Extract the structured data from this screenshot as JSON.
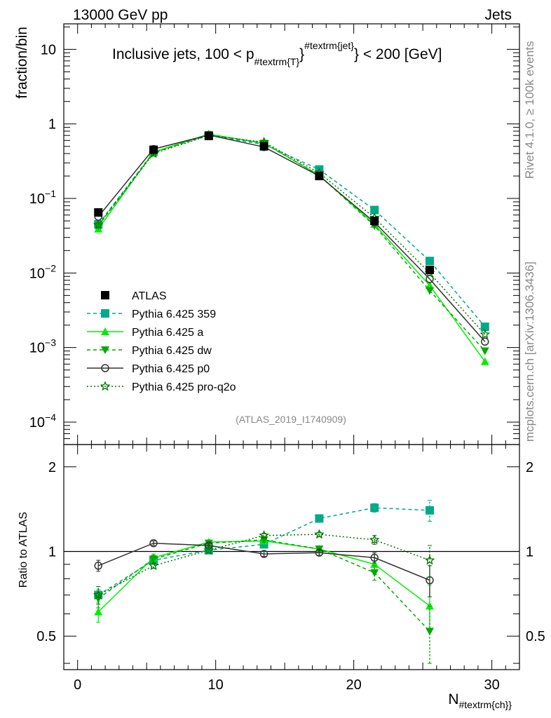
{
  "header": {
    "left": "13000 GeV pp",
    "right": "Jets",
    "side_top": "Rivet 4.1.0, ≥ 100k events",
    "side_bottom": "mcplots.cern.ch [arXiv:1306.3436]",
    "analysis_id": "(ATLAS_2019_I1740909)"
  },
  "chart_data": {
    "type": "line",
    "title": {
      "main": "Inclusive jets, 100 < p",
      "sub": "#textrm{T}",
      "sup": "#textrm{jet}",
      "tail": "} < 200 [GeV]"
    },
    "xlabel": {
      "main": "N",
      "sub": "#textrm{ch}}"
    },
    "ylabel_top": "fraction/bin",
    "ylabel_bottom": "Ratio to ATLAS",
    "xlim": [
      -1,
      32
    ],
    "ylim_top": [
      5e-05,
      22
    ],
    "ylim_bottom": [
      0.38,
      2.4
    ],
    "x_ticks": [
      0,
      10,
      20,
      30
    ],
    "x_tick_labels": [
      "0",
      "10",
      "20",
      "30"
    ],
    "y_ticks_top": [
      10,
      1,
      0.1,
      0.01,
      0.001,
      0.0001
    ],
    "y_tick_labels_top": [
      {
        "base": "10",
        "exp": ""
      },
      {
        "base": "1",
        "exp": ""
      },
      {
        "base": "10",
        "exp": "−1"
      },
      {
        "base": "10",
        "exp": "−2"
      },
      {
        "base": "10",
        "exp": "−3"
      },
      {
        "base": "10",
        "exp": "−4"
      }
    ],
    "y_ticks_bottom": [
      2,
      1,
      0.5
    ],
    "y_tick_labels_bottom": [
      "2",
      "1",
      "0.5"
    ],
    "legend_position": "middle-left",
    "x": [
      1.5,
      5.5,
      9.5,
      13.5,
      17.5,
      21.5,
      25.5,
      29.5
    ],
    "series": [
      {
        "key": "atlas",
        "name": "ATLAS",
        "color": "#000000",
        "dash": "none",
        "marker": "square-filled",
        "line": false,
        "values": [
          0.065,
          0.45,
          0.69,
          0.5,
          0.2,
          0.05,
          0.011,
          null
        ],
        "ratio": null,
        "ratio_err": null
      },
      {
        "key": "p359",
        "name": "Pythia 6.425 359",
        "color": "#00aa88",
        "dash": "5,4",
        "marker": "square-filled",
        "line": true,
        "values": [
          0.045,
          0.42,
          0.7,
          0.53,
          0.245,
          0.07,
          0.0145,
          0.0019
        ],
        "ratio": [
          0.7,
          0.93,
          1.01,
          1.06,
          1.31,
          1.43,
          1.4,
          null
        ],
        "ratio_err": [
          0.05,
          0.03,
          0.02,
          0.02,
          0.03,
          0.05,
          0.12,
          null
        ]
      },
      {
        "key": "pa",
        "name": "Pythia 6.425 a",
        "color": "#00ee00",
        "dash": "none",
        "marker": "triangle-up",
        "line": true,
        "values": [
          0.039,
          0.42,
          0.73,
          0.55,
          0.205,
          0.045,
          0.0068,
          0.00065
        ],
        "ratio": [
          0.61,
          0.95,
          1.08,
          1.09,
          1.02,
          0.9,
          0.64,
          null
        ],
        "ratio_err": [
          0.05,
          0.03,
          0.02,
          0.02,
          0.02,
          0.05,
          0.12,
          null
        ]
      },
      {
        "key": "pdw",
        "name": "Pythia 6.425 dw",
        "color": "#00aa00",
        "dash": "5,4",
        "marker": "triangle-down",
        "line": true,
        "values": [
          0.043,
          0.41,
          0.72,
          0.55,
          0.205,
          0.043,
          0.0058,
          0.0009
        ],
        "ratio": [
          0.68,
          0.94,
          1.07,
          1.1,
          1.02,
          0.84,
          0.52,
          null
        ],
        "ratio_err": [
          0.05,
          0.03,
          0.02,
          0.02,
          0.02,
          0.05,
          0.12,
          null
        ]
      },
      {
        "key": "pp0",
        "name": "Pythia 6.425 p0",
        "color": "#333333",
        "dash": "none",
        "marker": "circle-open",
        "line": true,
        "values": [
          0.057,
          0.46,
          0.71,
          0.49,
          0.2,
          0.048,
          0.0083,
          0.0012
        ],
        "ratio": [
          0.89,
          1.07,
          1.05,
          0.98,
          0.99,
          0.95,
          0.79,
          null
        ],
        "ratio_err": [
          0.04,
          0.02,
          0.02,
          0.02,
          0.02,
          0.04,
          0.1,
          null
        ]
      },
      {
        "key": "ppro",
        "name": "Pythia 6.425 pro-q2o",
        "color": "#007700",
        "dash": "2,3",
        "marker": "star-open",
        "line": true,
        "values": [
          0.044,
          0.4,
          0.7,
          0.57,
          0.22,
          0.055,
          0.01,
          0.0015
        ],
        "ratio": [
          0.7,
          0.89,
          1.01,
          1.14,
          1.15,
          1.1,
          0.93,
          null
        ],
        "ratio_err": [
          0.05,
          0.02,
          0.02,
          0.02,
          0.02,
          0.04,
          0.12,
          null
        ]
      }
    ],
    "ratio_reference": 1
  }
}
